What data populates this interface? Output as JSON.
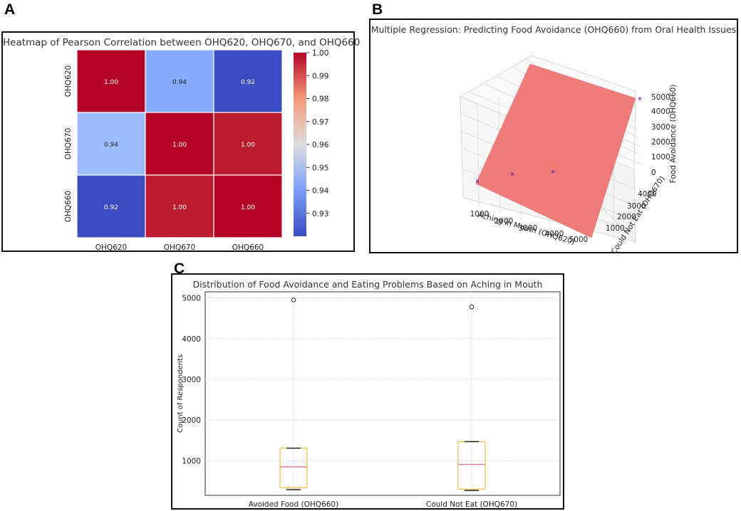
{
  "panels": {
    "a": {
      "letter": "A"
    },
    "b": {
      "letter": "B"
    },
    "c": {
      "letter": "C"
    }
  },
  "colors": {
    "red": "#b40426",
    "red2": "#bb1b2c",
    "light_blue": "#9dbdff",
    "light_blue2": "#88abfd",
    "blue": "#3b4cc0",
    "plane": "#ee7070",
    "box": "#f5c14e",
    "median": "#ee6e84",
    "point": "#6a1a9a"
  },
  "chart_data": [
    {
      "type": "heatmap",
      "title": "Heatmap of Pearson Correlation between OHQ620, OHQ670, and OHQ660",
      "rows": [
        "OHQ620",
        "OHQ670",
        "OHQ660"
      ],
      "cols": [
        "OHQ620",
        "OHQ670",
        "OHQ660"
      ],
      "values": [
        [
          1.0,
          0.94,
          0.92
        ],
        [
          0.94,
          1.0,
          1.0
        ],
        [
          0.92,
          1.0,
          1.0
        ]
      ],
      "colorbar": {
        "min": 0.92,
        "max": 1.0,
        "ticks": [
          "1.00",
          "0.99",
          "0.98",
          "0.97",
          "0.96",
          "0.95",
          "0.94",
          "0.93"
        ]
      }
    },
    {
      "type": "scatter",
      "title": "Multiple Regression: Predicting Food Avoidance (OHQ660) from Oral Health Issues",
      "xlabel": "Aching in Mouth (OHQ620)",
      "ylabel": "Could Not Eat (OHQ670)",
      "zlabel": "Food Avoidance (OHQ660)",
      "x_ticks": [
        "1000",
        "2000",
        "3000",
        "4000",
        "5000"
      ],
      "y_ticks": [
        "1000",
        "2000",
        "3000",
        "4000"
      ],
      "z_ticks": [
        "5000",
        "4000",
        "3000",
        "2000",
        "1000",
        "0"
      ],
      "points": [
        {
          "x": 300,
          "y": 300,
          "z": 300
        },
        {
          "x": 900,
          "y": 900,
          "z": 900
        },
        {
          "x": 1300,
          "y": 1400,
          "z": 1300
        },
        {
          "x": 5000,
          "y": 4800,
          "z": 4950
        }
      ]
    },
    {
      "type": "box",
      "title": "Distribution of Food Avoidance and Eating Problems Based on Aching in Mouth",
      "ylabel": "Count of Respondents",
      "ylim": [
        150,
        5150
      ],
      "yticks": [
        1000,
        2000,
        3000,
        4000,
        5000
      ],
      "series": [
        {
          "name": "Avoided Food (OHQ660)",
          "min": 290,
          "q1": 340,
          "median": 850,
          "q3": 1310,
          "max": 1310,
          "outliers": [
            4950
          ]
        },
        {
          "name": "Could Not Eat (OHQ670)",
          "min": 270,
          "q1": 300,
          "median": 910,
          "q3": 1470,
          "max": 1470,
          "outliers": [
            4780
          ]
        }
      ]
    }
  ]
}
